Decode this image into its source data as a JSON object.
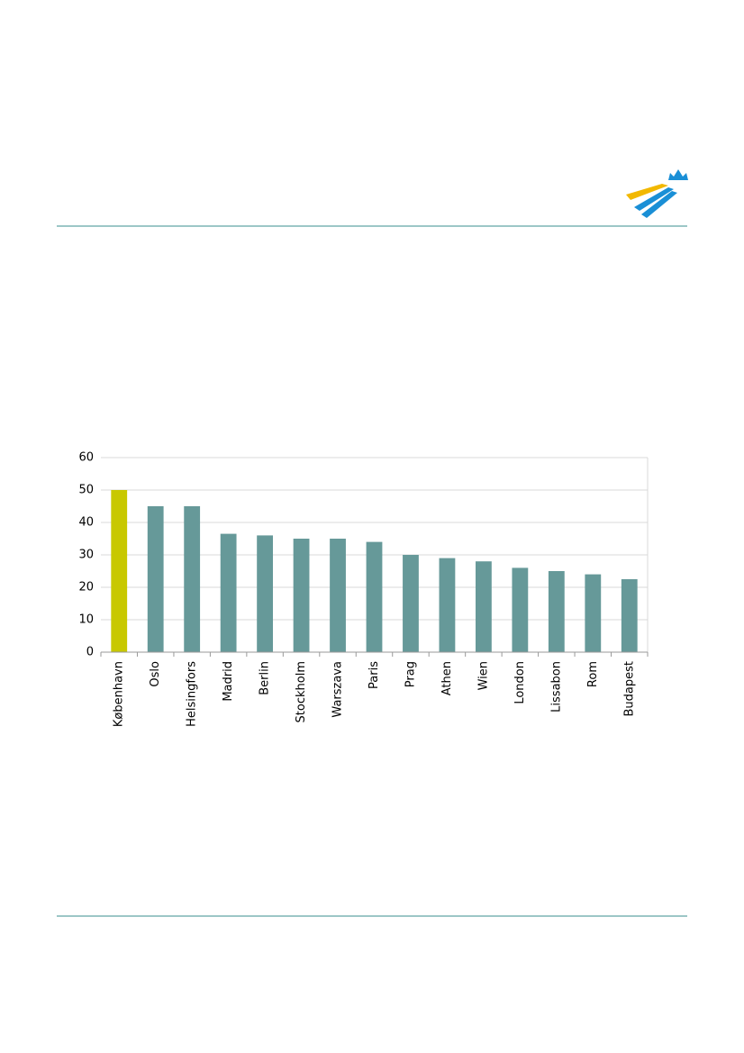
{
  "chart_data": {
    "type": "bar",
    "categories": [
      "København",
      "Oslo",
      "Helsingfors",
      "Madrid",
      "Berlin",
      "Stockholm",
      "Warszava",
      "Paris",
      "Prag",
      "Athen",
      "Wien",
      "London",
      "Lissabon",
      "Rom",
      "Budapest"
    ],
    "values": [
      50,
      45,
      45,
      36.5,
      36,
      35,
      35,
      34,
      30,
      29,
      28,
      26,
      25,
      24,
      22.5
    ],
    "colors": [
      "#c8c800",
      "#669999",
      "#669999",
      "#669999",
      "#669999",
      "#669999",
      "#669999",
      "#669999",
      "#669999",
      "#669999",
      "#669999",
      "#669999",
      "#669999",
      "#669999",
      "#669999"
    ],
    "ylim": [
      0,
      60
    ],
    "yticks": [
      0,
      10,
      20,
      30,
      40,
      50,
      60
    ],
    "grid": true
  }
}
